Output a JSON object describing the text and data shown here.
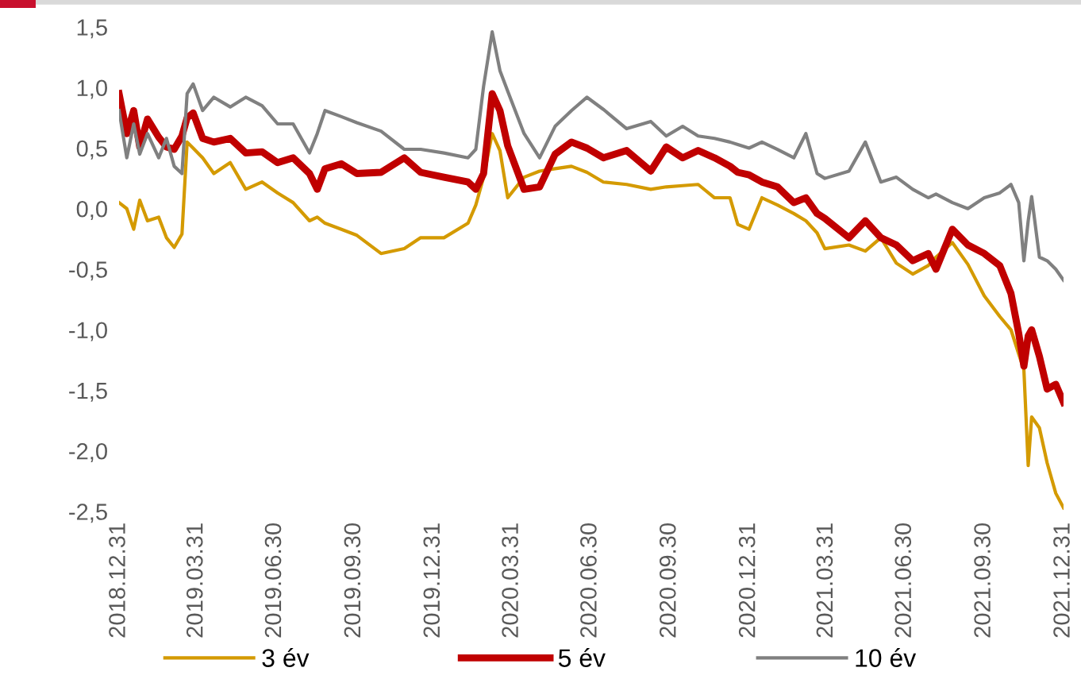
{
  "chart_data": {
    "type": "line",
    "x": [
      "2018-12-31",
      "2019-01-09",
      "2019-01-17",
      "2019-01-24",
      "2019-02-02",
      "2019-02-15",
      "2019-02-24",
      "2019-03-05",
      "2019-03-14",
      "2019-03-20",
      "2019-03-27",
      "2019-04-07",
      "2019-04-20",
      "2019-05-09",
      "2019-05-27",
      "2019-06-15",
      "2019-07-03",
      "2019-07-21",
      "2019-08-09",
      "2019-08-18",
      "2019-08-27",
      "2019-09-15",
      "2019-10-03",
      "2019-10-31",
      "2019-11-27",
      "2019-12-16",
      "2020-01-12",
      "2020-02-09",
      "2020-02-18",
      "2020-02-27",
      "2020-03-08",
      "2020-03-17",
      "2020-03-26",
      "2020-04-14",
      "2020-05-02",
      "2020-05-20",
      "2020-06-08",
      "2020-06-26",
      "2020-07-15",
      "2020-08-11",
      "2020-09-08",
      "2020-09-26",
      "2020-10-15",
      "2020-11-02",
      "2020-11-21",
      "2020-12-09",
      "2020-12-18",
      "2020-12-31",
      "2021-01-15",
      "2021-02-02",
      "2021-02-21",
      "2021-03-07",
      "2021-03-20",
      "2021-03-29",
      "2021-04-26",
      "2021-05-15",
      "2021-06-02",
      "2021-06-20",
      "2021-07-09",
      "2021-07-27",
      "2021-08-05",
      "2021-08-24",
      "2021-09-11",
      "2021-09-30",
      "2021-10-18",
      "2021-10-31",
      "2021-11-09",
      "2021-11-15",
      "2021-11-20",
      "2021-11-24",
      "2021-12-03",
      "2021-12-12",
      "2021-12-22",
      "2021-12-31"
    ],
    "series": [
      {
        "name": "3 év",
        "color": "#d49a00",
        "values": [
          0.05,
          0.0,
          -0.17,
          0.07,
          -0.1,
          -0.07,
          -0.24,
          -0.32,
          -0.21,
          0.55,
          0.5,
          0.42,
          0.29,
          0.38,
          0.16,
          0.22,
          0.13,
          0.05,
          -0.1,
          -0.07,
          -0.12,
          -0.17,
          -0.22,
          -0.37,
          -0.33,
          -0.24,
          -0.24,
          -0.12,
          0.03,
          0.26,
          0.62,
          0.48,
          0.09,
          0.26,
          0.31,
          0.33,
          0.35,
          0.3,
          0.22,
          0.2,
          0.16,
          0.18,
          0.19,
          0.2,
          0.09,
          0.09,
          -0.13,
          -0.17,
          0.09,
          0.03,
          -0.04,
          -0.1,
          -0.2,
          -0.33,
          -0.3,
          -0.35,
          -0.24,
          -0.45,
          -0.54,
          -0.47,
          -0.4,
          -0.28,
          -0.46,
          -0.72,
          -0.89,
          -1.0,
          -1.2,
          -1.33,
          -2.12,
          -1.72,
          -1.81,
          -2.1,
          -2.35,
          -2.47
        ]
      },
      {
        "name": "5 év",
        "color": "#c00000",
        "values": [
          0.95,
          0.62,
          0.81,
          0.51,
          0.74,
          0.59,
          0.51,
          0.49,
          0.6,
          0.75,
          0.79,
          0.58,
          0.55,
          0.58,
          0.46,
          0.47,
          0.38,
          0.42,
          0.29,
          0.16,
          0.33,
          0.37,
          0.29,
          0.3,
          0.42,
          0.3,
          0.26,
          0.22,
          0.16,
          0.29,
          0.95,
          0.81,
          0.52,
          0.16,
          0.18,
          0.45,
          0.55,
          0.5,
          0.42,
          0.48,
          0.31,
          0.51,
          0.42,
          0.48,
          0.42,
          0.35,
          0.3,
          0.28,
          0.22,
          0.18,
          0.05,
          0.09,
          -0.04,
          -0.08,
          -0.24,
          -0.1,
          -0.24,
          -0.3,
          -0.43,
          -0.37,
          -0.5,
          -0.17,
          -0.3,
          -0.37,
          -0.47,
          -0.7,
          -1.03,
          -1.3,
          -1.05,
          -1.0,
          -1.22,
          -1.49,
          -1.45,
          -1.6
        ]
      },
      {
        "name": "10 év",
        "color": "#808080",
        "values": [
          0.81,
          0.42,
          0.7,
          0.45,
          0.62,
          0.42,
          0.58,
          0.35,
          0.29,
          0.95,
          1.03,
          0.81,
          0.92,
          0.84,
          0.92,
          0.85,
          0.7,
          0.7,
          0.46,
          0.62,
          0.81,
          0.76,
          0.71,
          0.64,
          0.49,
          0.49,
          0.46,
          0.42,
          0.49,
          1.01,
          1.46,
          1.14,
          0.97,
          0.62,
          0.42,
          0.68,
          0.81,
          0.92,
          0.82,
          0.66,
          0.72,
          0.6,
          0.68,
          0.6,
          0.58,
          0.55,
          0.53,
          0.5,
          0.55,
          0.49,
          0.42,
          0.62,
          0.29,
          0.25,
          0.31,
          0.55,
          0.22,
          0.26,
          0.16,
          0.09,
          0.12,
          0.05,
          0.0,
          0.09,
          0.13,
          0.2,
          0.05,
          -0.43,
          -0.1,
          0.1,
          -0.4,
          -0.43,
          -0.5,
          -0.59
        ]
      }
    ],
    "ylim": [
      -2.5,
      1.5
    ],
    "yticks": [
      {
        "value": -2.5,
        "label": "-2,5"
      },
      {
        "value": -2.0,
        "label": "-2,0"
      },
      {
        "value": -1.5,
        "label": "-1,5"
      },
      {
        "value": -1.0,
        "label": "-1,0"
      },
      {
        "value": -0.5,
        "label": "-0,5"
      },
      {
        "value": 0.0,
        "label": "0,0"
      },
      {
        "value": 0.5,
        "label": "0,5"
      },
      {
        "value": 1.0,
        "label": "1,0"
      },
      {
        "value": 1.5,
        "label": "1,5"
      }
    ],
    "xlim": [
      "2018-12-31",
      "2021-12-31"
    ],
    "xticks": [
      {
        "value": "2018-12-31",
        "label": "2018.12.31"
      },
      {
        "value": "2019-03-31",
        "label": "2019.03.31"
      },
      {
        "value": "2019-06-30",
        "label": "2019.06.30"
      },
      {
        "value": "2019-09-30",
        "label": "2019.09.30"
      },
      {
        "value": "2019-12-31",
        "label": "2019.12.31"
      },
      {
        "value": "2020-03-31",
        "label": "2020.03.31"
      },
      {
        "value": "2020-06-30",
        "label": "2020.06.30"
      },
      {
        "value": "2020-09-30",
        "label": "2020.09.30"
      },
      {
        "value": "2020-12-31",
        "label": "2020.12.31"
      },
      {
        "value": "2021-03-31",
        "label": "2021.03.31"
      },
      {
        "value": "2021-06-30",
        "label": "2021.06.30"
      },
      {
        "value": "2021-09-30",
        "label": "2021.09.30"
      },
      {
        "value": "2021-12-31",
        "label": "2021.12.31"
      }
    ],
    "grid": false,
    "legend": "bottom",
    "marker": "none",
    "line_style": "solid"
  }
}
